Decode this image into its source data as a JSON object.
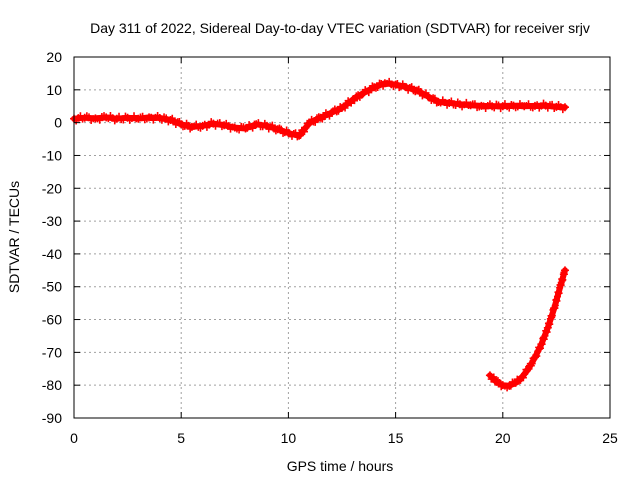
{
  "chart_data": {
    "type": "scatter",
    "title": "Day 311 of 2022, Sidereal Day-to-day VTEC variation (SDTVAR) for receiver srjv",
    "xlabel": "GPS time / hours",
    "ylabel": "SDTVAR / TECUs",
    "xlim": [
      0,
      25
    ],
    "ylim": [
      -90,
      20
    ],
    "xticks": [
      0,
      5,
      10,
      15,
      20,
      25
    ],
    "yticks": [
      20,
      10,
      0,
      -10,
      -20,
      -30,
      -40,
      -50,
      -60,
      -70,
      -80,
      -90
    ],
    "grid": true,
    "series_color": "#ff0000",
    "series": [
      {
        "name": "srjv main arc",
        "marker": "plus",
        "points": [
          [
            0.0,
            1.2
          ],
          [
            0.5,
            1.5
          ],
          [
            1.0,
            1.3
          ],
          [
            1.5,
            1.6
          ],
          [
            2.0,
            1.2
          ],
          [
            2.5,
            1.5
          ],
          [
            3.0,
            1.2
          ],
          [
            3.5,
            1.6
          ],
          [
            4.0,
            1.4
          ],
          [
            4.5,
            0.8
          ],
          [
            5.0,
            -0.5
          ],
          [
            5.5,
            -1.3
          ],
          [
            6.0,
            -1.0
          ],
          [
            6.5,
            -0.3
          ],
          [
            7.0,
            -0.8
          ],
          [
            7.5,
            -1.5
          ],
          [
            8.0,
            -1.8
          ],
          [
            8.5,
            -0.5
          ],
          [
            9.0,
            -1.0
          ],
          [
            9.5,
            -2.0
          ],
          [
            10.0,
            -3.2
          ],
          [
            10.5,
            -4.0
          ],
          [
            11.0,
            0.0
          ],
          [
            11.5,
            1.5
          ],
          [
            12.0,
            3.0
          ],
          [
            12.5,
            4.5
          ],
          [
            13.0,
            7.0
          ],
          [
            13.5,
            9.0
          ],
          [
            14.0,
            10.8
          ],
          [
            14.5,
            12.0
          ],
          [
            15.0,
            11.6
          ],
          [
            15.5,
            10.8
          ],
          [
            16.0,
            9.8
          ],
          [
            16.5,
            8.0
          ],
          [
            17.0,
            6.3
          ],
          [
            17.5,
            6.0
          ],
          [
            18.0,
            5.6
          ],
          [
            18.5,
            5.3
          ],
          [
            19.0,
            5.1
          ],
          [
            19.5,
            5.0
          ],
          [
            20.0,
            5.0
          ],
          [
            20.5,
            5.2
          ],
          [
            21.0,
            5.0
          ],
          [
            21.5,
            5.1
          ],
          [
            22.0,
            5.2
          ],
          [
            22.5,
            4.8
          ],
          [
            22.9,
            4.7
          ]
        ]
      },
      {
        "name": "srjv second arc",
        "marker": "plus",
        "points": [
          [
            19.4,
            -77.0
          ],
          [
            19.7,
            -79.0
          ],
          [
            20.0,
            -80.0
          ],
          [
            20.3,
            -80.2
          ],
          [
            20.6,
            -79.3
          ],
          [
            20.9,
            -77.5
          ],
          [
            21.2,
            -75.0
          ],
          [
            21.5,
            -71.5
          ],
          [
            21.8,
            -67.5
          ],
          [
            22.1,
            -62.5
          ],
          [
            22.4,
            -56.5
          ],
          [
            22.7,
            -49.5
          ],
          [
            22.9,
            -45.0
          ]
        ]
      }
    ]
  }
}
